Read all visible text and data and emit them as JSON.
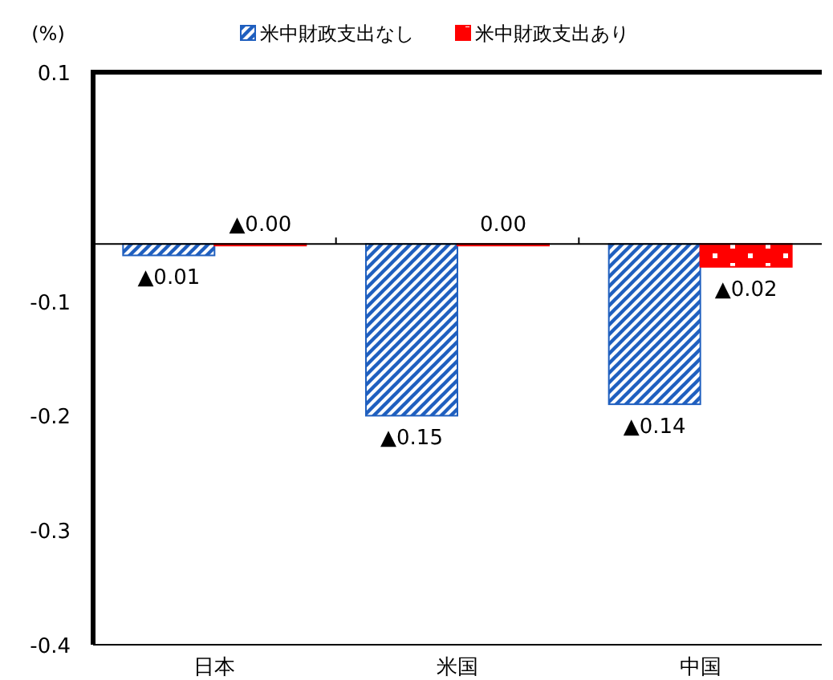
{
  "chart_data": {
    "type": "bar",
    "ylabel": "(%)",
    "categories": [
      "日本",
      "米国",
      "中国"
    ],
    "series": [
      {
        "name": "米中財政支出なし",
        "color": "#1f5fbf",
        "values": [
          -0.01,
          -0.15,
          -0.14
        ],
        "base": [
          -0.05,
          -0.05,
          -0.05
        ],
        "value_labels": [
          "▲0.01",
          "▲0.15",
          "▲0.14"
        ]
      },
      {
        "name": "米中財政支出あり",
        "color": "#ff0000",
        "values": [
          0,
          0,
          -0.02
        ],
        "base": [
          -0.05,
          -0.05,
          -0.05
        ],
        "value_labels": [
          "▲0.00",
          "0.00",
          "▲0.02"
        ]
      }
    ],
    "ylim": [
      -0.4,
      0.1
    ],
    "yticks": [
      0.1,
      -0.1,
      -0.2,
      -0.3,
      -0.4
    ],
    "ref_lines": [
      {
        "axis": "y",
        "value": -0.05,
        "color": "#000000"
      }
    ],
    "grid": false,
    "legend": "top"
  }
}
